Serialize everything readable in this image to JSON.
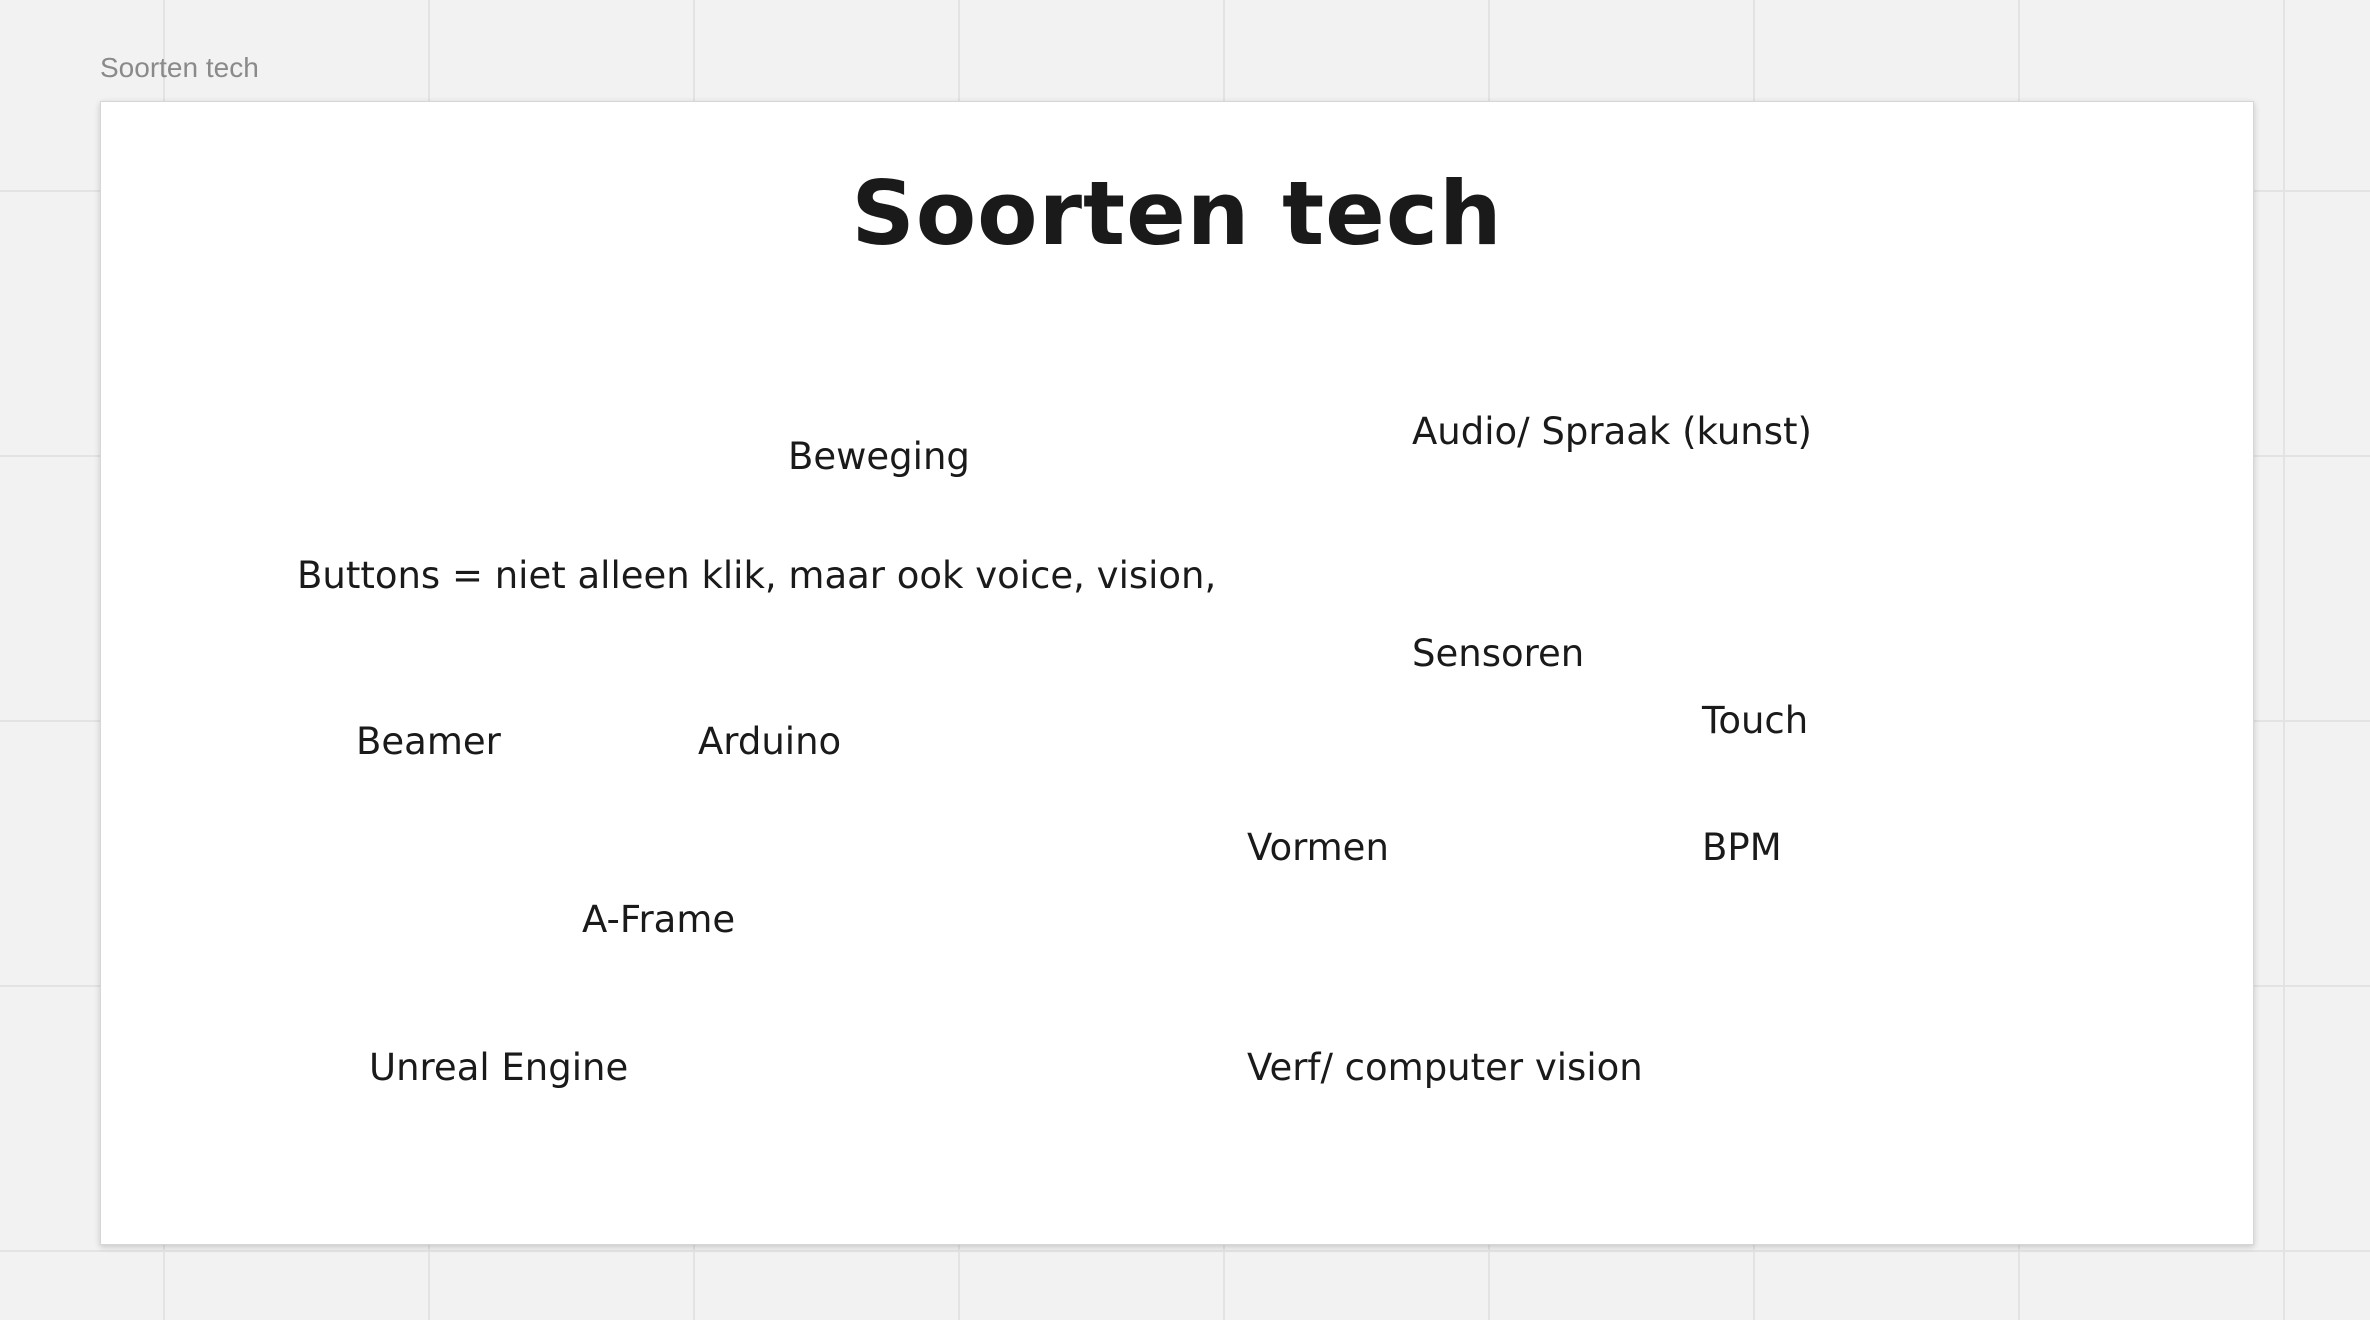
{
  "board": {
    "frame_label": "Soorten tech",
    "frame_title": "Soorten tech",
    "notes": {
      "beweging": "Beweging",
      "audio_spraak": "Audio/ Spraak (kunst)",
      "buttons": "Buttons = niet alleen klik, maar ook voice, vision,",
      "sensoren": "Sensoren",
      "touch": "Touch",
      "beamer": "Beamer",
      "arduino": "Arduino",
      "vormen": "Vormen",
      "bpm": "BPM",
      "a_frame": "A-Frame",
      "unreal_engine": "Unreal Engine",
      "verf_computer_vision": "Verf/ computer vision"
    }
  }
}
